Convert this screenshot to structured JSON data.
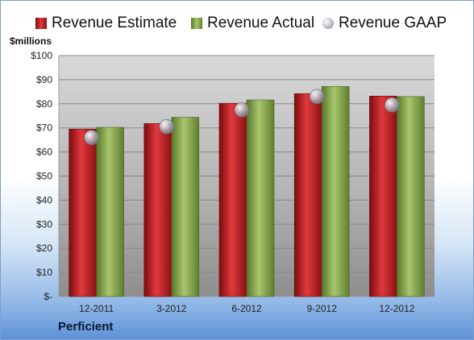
{
  "company": "Perficient",
  "chart_data": {
    "type": "bar",
    "ylabel": "$millions",
    "ylim": [
      0,
      100
    ],
    "yticks": [
      "$-",
      "$10",
      "$20",
      "$30",
      "$40",
      "$50",
      "$60",
      "$70",
      "$80",
      "$90",
      "$100"
    ],
    "categories": [
      "12-2011",
      "3-2012",
      "6-2012",
      "9-2012",
      "12-2012"
    ],
    "series": [
      {
        "name": "Revenue Estimate",
        "type": "bar",
        "color": "#d0242a",
        "values": [
          69.5,
          71.8,
          80.2,
          84.2,
          83.2
        ]
      },
      {
        "name": "Revenue Actual",
        "type": "bar",
        "color": "#8fae56",
        "values": [
          70.2,
          74.4,
          81.6,
          87.2,
          83.0
        ]
      },
      {
        "name": "Revenue GAAP",
        "type": "scatter",
        "color": "#b0b6c2",
        "values": [
          66.0,
          70.5,
          77.5,
          83.0,
          79.5
        ]
      }
    ],
    "grid": true,
    "legend": "top"
  }
}
